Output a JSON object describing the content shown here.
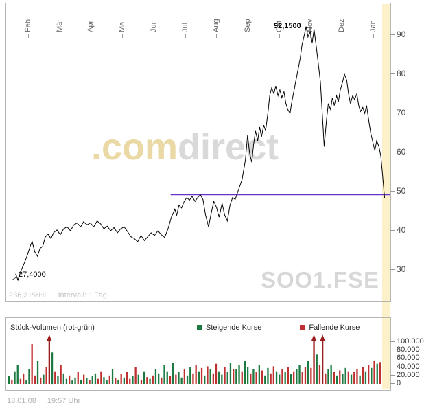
{
  "watermark": {
    "com": ".com",
    "direct": "direct"
  },
  "footer": {
    "date": "18.01.08",
    "time": "19:57 Uhr"
  },
  "chart_data": [
    {
      "type": "line",
      "symbol": "SOO1.FSE",
      "x_tick_labels": [
        "Feb",
        "Mär",
        "Apr",
        "Mai",
        "Jun",
        "Jul",
        "Aug",
        "Sep",
        "Okt",
        "Nov",
        "Dez",
        "Jan"
      ],
      "y_ticks": [
        90,
        80,
        70,
        60,
        50,
        40,
        30
      ],
      "ylim": [
        25,
        95
      ],
      "line_color": "#000000",
      "support_line": {
        "value": 49.2,
        "t_start": 0.42,
        "color": "#6633cc"
      },
      "annotations": {
        "high_label": "92,1500",
        "low_label": "27,4000"
      },
      "footer_labels": {
        "range": "236,31%HL",
        "interval": "Intervall: 1 Tag"
      },
      "highlight_band_color": "#fcf1c9",
      "points": [
        [
          0.007,
          29.0
        ],
        [
          0.013,
          27.4
        ],
        [
          0.022,
          30.0
        ],
        [
          0.029,
          31.5
        ],
        [
          0.039,
          34.0
        ],
        [
          0.047,
          36.4
        ],
        [
          0.051,
          37.2
        ],
        [
          0.058,
          34.6
        ],
        [
          0.065,
          33.5
        ],
        [
          0.072,
          35.5
        ],
        [
          0.079,
          36.0
        ],
        [
          0.086,
          38.4
        ],
        [
          0.093,
          39.2
        ],
        [
          0.101,
          38.0
        ],
        [
          0.108,
          39.5
        ],
        [
          0.117,
          40.2
        ],
        [
          0.126,
          39.0
        ],
        [
          0.135,
          40.5
        ],
        [
          0.144,
          41.0
        ],
        [
          0.153,
          40.0
        ],
        [
          0.162,
          41.5
        ],
        [
          0.171,
          42.0
        ],
        [
          0.18,
          41.0
        ],
        [
          0.188,
          42.3
        ],
        [
          0.197,
          41.5
        ],
        [
          0.206,
          42.0
        ],
        [
          0.215,
          41.0
        ],
        [
          0.224,
          42.5
        ],
        [
          0.233,
          41.8
        ],
        [
          0.242,
          40.5
        ],
        [
          0.251,
          41.2
        ],
        [
          0.26,
          40.0
        ],
        [
          0.269,
          40.8
        ],
        [
          0.278,
          39.5
        ],
        [
          0.287,
          40.5
        ],
        [
          0.296,
          41.0
        ],
        [
          0.305,
          39.8
        ],
        [
          0.314,
          38.5
        ],
        [
          0.323,
          38.0
        ],
        [
          0.332,
          37.2
        ],
        [
          0.341,
          38.8
        ],
        [
          0.35,
          37.5
        ],
        [
          0.359,
          38.5
        ],
        [
          0.368,
          39.5
        ],
        [
          0.377,
          38.8
        ],
        [
          0.386,
          40.0
        ],
        [
          0.395,
          39.0
        ],
        [
          0.404,
          38.3
        ],
        [
          0.413,
          40.5
        ],
        [
          0.422,
          43.5
        ],
        [
          0.431,
          45.5
        ],
        [
          0.436,
          44.0
        ],
        [
          0.442,
          46.5
        ],
        [
          0.449,
          45.8
        ],
        [
          0.456,
          47.5
        ],
        [
          0.463,
          48.5
        ],
        [
          0.47,
          47.8
        ],
        [
          0.477,
          48.8
        ],
        [
          0.485,
          47.5
        ],
        [
          0.492,
          48.5
        ],
        [
          0.499,
          49.2
        ],
        [
          0.506,
          48.0
        ],
        [
          0.513,
          44.0
        ],
        [
          0.521,
          41.0
        ],
        [
          0.528,
          44.5
        ],
        [
          0.535,
          47.5
        ],
        [
          0.542,
          46.0
        ],
        [
          0.549,
          43.5
        ],
        [
          0.557,
          47.0
        ],
        [
          0.564,
          44.0
        ],
        [
          0.571,
          42.5
        ],
        [
          0.578,
          46.5
        ],
        [
          0.585,
          48.5
        ],
        [
          0.592,
          48.0
        ],
        [
          0.601,
          50.5
        ],
        [
          0.61,
          53.0
        ],
        [
          0.619,
          58.0
        ],
        [
          0.625,
          64.5
        ],
        [
          0.63,
          60.0
        ],
        [
          0.636,
          57.5
        ],
        [
          0.641,
          62.0
        ],
        [
          0.646,
          65.5
        ],
        [
          0.652,
          63.0
        ],
        [
          0.657,
          66.5
        ],
        [
          0.662,
          64.0
        ],
        [
          0.668,
          67.0
        ],
        [
          0.673,
          65.5
        ],
        [
          0.679,
          70.0
        ],
        [
          0.684,
          74.5
        ],
        [
          0.689,
          76.5
        ],
        [
          0.695,
          75.0
        ],
        [
          0.7,
          77.0
        ],
        [
          0.706,
          74.5
        ],
        [
          0.711,
          76.0
        ],
        [
          0.716,
          74.0
        ],
        [
          0.722,
          75.5
        ],
        [
          0.727,
          72.5
        ],
        [
          0.732,
          71.0
        ],
        [
          0.738,
          70.0
        ],
        [
          0.743,
          73.0
        ],
        [
          0.749,
          76.0
        ],
        [
          0.754,
          78.5
        ],
        [
          0.759,
          81.0
        ],
        [
          0.765,
          84.0
        ],
        [
          0.77,
          87.5
        ],
        [
          0.776,
          90.0
        ],
        [
          0.781,
          92.15
        ],
        [
          0.786,
          89.5
        ],
        [
          0.792,
          91.0
        ],
        [
          0.797,
          88.0
        ],
        [
          0.802,
          91.5
        ],
        [
          0.808,
          87.0
        ],
        [
          0.813,
          83.0
        ],
        [
          0.819,
          78.0
        ],
        [
          0.824,
          70.0
        ],
        [
          0.829,
          61.5
        ],
        [
          0.835,
          68.0
        ],
        [
          0.84,
          72.5
        ],
        [
          0.846,
          71.0
        ],
        [
          0.851,
          74.0
        ],
        [
          0.856,
          72.0
        ],
        [
          0.862,
          74.5
        ],
        [
          0.867,
          73.0
        ],
        [
          0.872,
          76.0
        ],
        [
          0.878,
          78.0
        ],
        [
          0.883,
          80.0
        ],
        [
          0.889,
          78.5
        ],
        [
          0.894,
          75.0
        ],
        [
          0.899,
          72.5
        ],
        [
          0.905,
          74.5
        ],
        [
          0.91,
          73.5
        ],
        [
          0.916,
          75.0
        ],
        [
          0.921,
          72.0
        ],
        [
          0.926,
          70.5
        ],
        [
          0.932,
          71.5
        ],
        [
          0.937,
          70.0
        ],
        [
          0.942,
          72.0
        ],
        [
          0.948,
          68.0
        ],
        [
          0.953,
          65.0
        ],
        [
          0.959,
          62.5
        ],
        [
          0.964,
          60.5
        ],
        [
          0.969,
          63.0
        ],
        [
          0.975,
          61.5
        ],
        [
          0.98,
          59.0
        ],
        [
          0.984,
          55.0
        ],
        [
          0.99,
          48.4
        ]
      ]
    },
    {
      "type": "bar",
      "title": "Stück-Volumen (rot-grün)",
      "y_tick_labels": [
        "100.000",
        "80.000",
        "60.000",
        "40.000",
        "20.000",
        "0"
      ],
      "ylim": [
        0,
        100000
      ],
      "unit": 1000,
      "legend": [
        {
          "label": "Steigende Kurse",
          "color": "#1a7a42"
        },
        {
          "label": "Fallende Kurse",
          "color": "#c03030"
        }
      ],
      "arrow_color": "#9b1c1c",
      "arrow_indices": [
        14,
        106,
        109
      ],
      "bars": [
        [
          18,
          "g"
        ],
        [
          10,
          "r"
        ],
        [
          30,
          "g"
        ],
        [
          45,
          "g"
        ],
        [
          12,
          "r"
        ],
        [
          25,
          "r"
        ],
        [
          8,
          "g"
        ],
        [
          35,
          "g"
        ],
        [
          95,
          "r"
        ],
        [
          20,
          "r"
        ],
        [
          55,
          "g"
        ],
        [
          15,
          "r"
        ],
        [
          22,
          "g"
        ],
        [
          40,
          "r"
        ],
        [
          100,
          "r"
        ],
        [
          75,
          "g"
        ],
        [
          30,
          "r"
        ],
        [
          18,
          "g"
        ],
        [
          45,
          "r"
        ],
        [
          25,
          "g"
        ],
        [
          12,
          "g"
        ],
        [
          20,
          "r"
        ],
        [
          8,
          "g"
        ],
        [
          15,
          "g"
        ],
        [
          28,
          "r"
        ],
        [
          10,
          "g"
        ],
        [
          22,
          "r"
        ],
        [
          14,
          "g"
        ],
        [
          9,
          "r"
        ],
        [
          18,
          "g"
        ],
        [
          25,
          "g"
        ],
        [
          12,
          "r"
        ],
        [
          30,
          "r"
        ],
        [
          16,
          "g"
        ],
        [
          8,
          "g"
        ],
        [
          20,
          "r"
        ],
        [
          35,
          "g"
        ],
        [
          14,
          "r"
        ],
        [
          10,
          "g"
        ],
        [
          24,
          "r"
        ],
        [
          15,
          "g"
        ],
        [
          28,
          "r"
        ],
        [
          12,
          "r"
        ],
        [
          18,
          "g"
        ],
        [
          40,
          "r"
        ],
        [
          22,
          "g"
        ],
        [
          10,
          "r"
        ],
        [
          30,
          "g"
        ],
        [
          16,
          "r"
        ],
        [
          12,
          "g"
        ],
        [
          20,
          "r"
        ],
        [
          35,
          "g"
        ],
        [
          25,
          "g"
        ],
        [
          15,
          "r"
        ],
        [
          45,
          "g"
        ],
        [
          30,
          "g"
        ],
        [
          18,
          "r"
        ],
        [
          50,
          "g"
        ],
        [
          22,
          "r"
        ],
        [
          28,
          "g"
        ],
        [
          15,
          "g"
        ],
        [
          35,
          "r"
        ],
        [
          20,
          "g"
        ],
        [
          40,
          "g"
        ],
        [
          25,
          "r"
        ],
        [
          45,
          "r"
        ],
        [
          30,
          "g"
        ],
        [
          38,
          "r"
        ],
        [
          20,
          "g"
        ],
        [
          42,
          "r"
        ],
        [
          35,
          "g"
        ],
        [
          25,
          "r"
        ],
        [
          48,
          "r"
        ],
        [
          30,
          "g"
        ],
        [
          22,
          "g"
        ],
        [
          40,
          "r"
        ],
        [
          28,
          "g"
        ],
        [
          50,
          "g"
        ],
        [
          35,
          "r"
        ],
        [
          35,
          "g"
        ],
        [
          45,
          "g"
        ],
        [
          30,
          "r"
        ],
        [
          55,
          "g"
        ],
        [
          40,
          "g"
        ],
        [
          25,
          "r"
        ],
        [
          35,
          "g"
        ],
        [
          28,
          "r"
        ],
        [
          45,
          "g"
        ],
        [
          32,
          "r"
        ],
        [
          20,
          "g"
        ],
        [
          38,
          "g"
        ],
        [
          25,
          "r"
        ],
        [
          42,
          "r"
        ],
        [
          30,
          "g"
        ],
        [
          22,
          "g"
        ],
        [
          35,
          "r"
        ],
        [
          28,
          "g"
        ],
        [
          40,
          "r"
        ],
        [
          24,
          "g"
        ],
        [
          30,
          "r"
        ],
        [
          35,
          "g"
        ],
        [
          45,
          "g"
        ],
        [
          28,
          "r"
        ],
        [
          40,
          "r"
        ],
        [
          55,
          "g"
        ],
        [
          38,
          "r"
        ],
        [
          100,
          "r"
        ],
        [
          70,
          "g"
        ],
        [
          45,
          "r"
        ],
        [
          100,
          "r"
        ],
        [
          25,
          "r"
        ],
        [
          35,
          "g"
        ],
        [
          45,
          "g"
        ],
        [
          28,
          "r"
        ],
        [
          20,
          "g"
        ],
        [
          32,
          "r"
        ],
        [
          24,
          "g"
        ],
        [
          38,
          "g"
        ],
        [
          30,
          "r"
        ],
        [
          22,
          "g"
        ],
        [
          28,
          "r"
        ],
        [
          35,
          "r"
        ],
        [
          20,
          "g"
        ],
        [
          40,
          "r"
        ],
        [
          30,
          "g"
        ],
        [
          45,
          "r"
        ],
        [
          38,
          "g"
        ],
        [
          55,
          "r"
        ],
        [
          48,
          "g"
        ],
        [
          52,
          "r"
        ]
      ]
    }
  ]
}
